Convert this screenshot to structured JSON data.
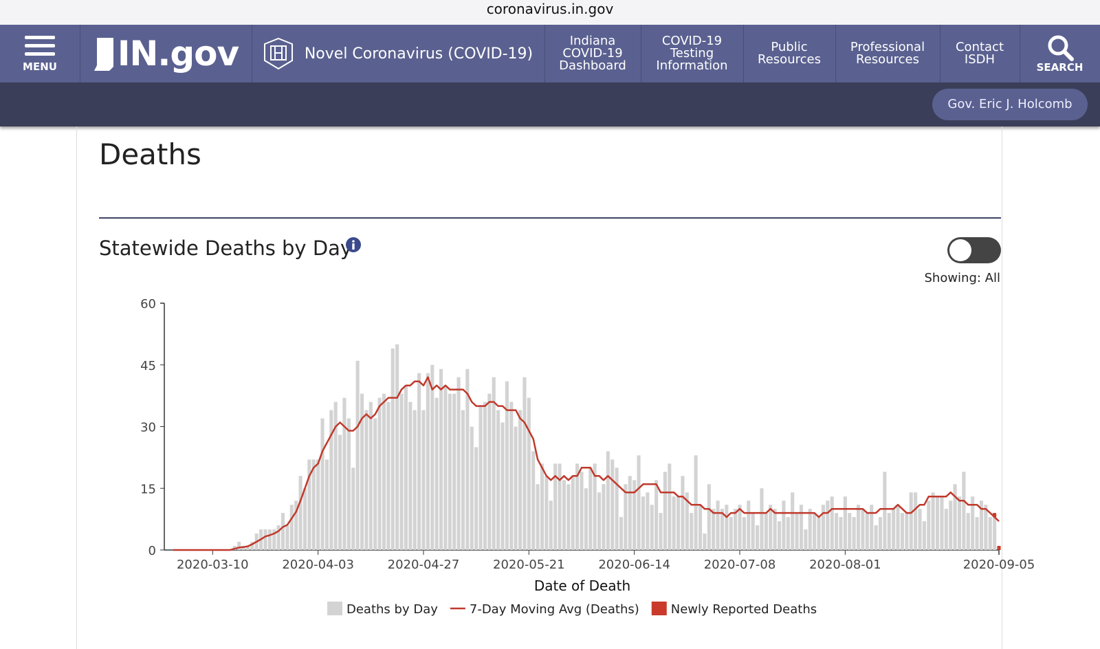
{
  "url": "coronavirus.in.gov",
  "nav": {
    "menu": "MENU",
    "logo": "IN.gov",
    "site": "Novel Coronavirus (COVID-19)",
    "links": [
      "Indiana\nCOVID-19\nDashboard",
      "COVID-19\nTesting\nInformation",
      "Public\nResources",
      "Professional\nResources",
      "Contact\nISDH"
    ],
    "search": "SEARCH"
  },
  "governor": "Gov. Eric J. Holcomb",
  "page_title": "Deaths",
  "section_title": "Statewide Deaths by Day",
  "toggle_label": "Showing: All",
  "chart_data": {
    "type": "bar",
    "xlabel": "Date of Death",
    "xlim": [
      "2020-02-28",
      "2020-09-05"
    ],
    "xticks": [
      "2020-03-10",
      "2020-04-03",
      "2020-04-27",
      "2020-05-21",
      "2020-06-14",
      "2020-07-08",
      "2020-08-01",
      "2020-09-05"
    ],
    "ylim": [
      0,
      60
    ],
    "yticks": [
      0,
      15,
      30,
      45,
      60
    ],
    "legend": "bottom",
    "x": [
      "2020-03-01",
      "2020-03-02",
      "2020-03-03",
      "2020-03-04",
      "2020-03-05",
      "2020-03-06",
      "2020-03-07",
      "2020-03-08",
      "2020-03-09",
      "2020-03-10",
      "2020-03-11",
      "2020-03-12",
      "2020-03-13",
      "2020-03-14",
      "2020-03-15",
      "2020-03-16",
      "2020-03-17",
      "2020-03-18",
      "2020-03-19",
      "2020-03-20",
      "2020-03-21",
      "2020-03-22",
      "2020-03-23",
      "2020-03-24",
      "2020-03-25",
      "2020-03-26",
      "2020-03-27",
      "2020-03-28",
      "2020-03-29",
      "2020-03-30",
      "2020-03-31",
      "2020-04-01",
      "2020-04-02",
      "2020-04-03",
      "2020-04-04",
      "2020-04-05",
      "2020-04-06",
      "2020-04-07",
      "2020-04-08",
      "2020-04-09",
      "2020-04-10",
      "2020-04-11",
      "2020-04-12",
      "2020-04-13",
      "2020-04-14",
      "2020-04-15",
      "2020-04-16",
      "2020-04-17",
      "2020-04-18",
      "2020-04-19",
      "2020-04-20",
      "2020-04-21",
      "2020-04-22",
      "2020-04-23",
      "2020-04-24",
      "2020-04-25",
      "2020-04-26",
      "2020-04-27",
      "2020-04-28",
      "2020-04-29",
      "2020-04-30",
      "2020-05-01",
      "2020-05-02",
      "2020-05-03",
      "2020-05-04",
      "2020-05-05",
      "2020-05-06",
      "2020-05-07",
      "2020-05-08",
      "2020-05-09",
      "2020-05-10",
      "2020-05-11",
      "2020-05-12",
      "2020-05-13",
      "2020-05-14",
      "2020-05-15",
      "2020-05-16",
      "2020-05-17",
      "2020-05-18",
      "2020-05-19",
      "2020-05-20",
      "2020-05-21",
      "2020-05-22",
      "2020-05-23",
      "2020-05-24",
      "2020-05-25",
      "2020-05-26",
      "2020-05-27",
      "2020-05-28",
      "2020-05-29",
      "2020-05-30",
      "2020-05-31",
      "2020-06-01",
      "2020-06-02",
      "2020-06-03",
      "2020-06-04",
      "2020-06-05",
      "2020-06-06",
      "2020-06-07",
      "2020-06-08",
      "2020-06-09",
      "2020-06-10",
      "2020-06-11",
      "2020-06-12",
      "2020-06-13",
      "2020-06-14",
      "2020-06-15",
      "2020-06-16",
      "2020-06-17",
      "2020-06-18",
      "2020-06-19",
      "2020-06-20",
      "2020-06-21",
      "2020-06-22",
      "2020-06-23",
      "2020-06-24",
      "2020-06-25",
      "2020-06-26",
      "2020-06-27",
      "2020-06-28",
      "2020-06-29",
      "2020-06-30",
      "2020-07-01",
      "2020-07-02",
      "2020-07-03",
      "2020-07-04",
      "2020-07-05",
      "2020-07-06",
      "2020-07-07",
      "2020-07-08",
      "2020-07-09",
      "2020-07-10",
      "2020-07-11",
      "2020-07-12",
      "2020-07-13",
      "2020-07-14",
      "2020-07-15",
      "2020-07-16",
      "2020-07-17",
      "2020-07-18",
      "2020-07-19",
      "2020-07-20",
      "2020-07-21",
      "2020-07-22",
      "2020-07-23",
      "2020-07-24",
      "2020-07-25",
      "2020-07-26",
      "2020-07-27",
      "2020-07-28",
      "2020-07-29",
      "2020-07-30",
      "2020-07-31",
      "2020-08-01",
      "2020-08-02",
      "2020-08-03",
      "2020-08-04",
      "2020-08-05",
      "2020-08-06",
      "2020-08-07",
      "2020-08-08",
      "2020-08-09",
      "2020-08-10",
      "2020-08-11",
      "2020-08-12",
      "2020-08-13",
      "2020-08-14",
      "2020-08-15",
      "2020-08-16",
      "2020-08-17",
      "2020-08-18",
      "2020-08-19",
      "2020-08-20",
      "2020-08-21",
      "2020-08-22",
      "2020-08-23",
      "2020-08-24",
      "2020-08-25",
      "2020-08-26",
      "2020-08-27",
      "2020-08-28",
      "2020-08-29",
      "2020-08-30",
      "2020-08-31",
      "2020-09-01",
      "2020-09-02",
      "2020-09-03",
      "2020-09-04",
      "2020-09-05"
    ],
    "series": [
      {
        "name": "Deaths by Day",
        "type": "bar",
        "color": "#d3d3d3",
        "values": [
          0,
          0,
          0,
          0,
          0,
          0,
          0,
          0,
          0,
          0,
          0,
          0,
          0,
          0,
          1,
          2,
          1,
          1,
          2,
          4,
          5,
          5,
          5,
          5,
          6,
          9,
          6,
          11,
          12,
          18,
          15,
          22,
          22,
          22,
          32,
          22,
          34,
          36,
          28,
          37,
          32,
          20,
          46,
          38,
          34,
          36,
          32,
          37,
          38,
          36,
          49,
          50,
          38,
          40,
          36,
          34,
          43,
          34,
          43,
          45,
          37,
          44,
          40,
          38,
          38,
          42,
          34,
          44,
          30,
          25,
          35,
          36,
          38,
          42,
          34,
          31,
          41,
          36,
          30,
          34,
          42,
          37,
          24,
          16,
          21,
          18,
          12,
          21,
          21,
          17,
          16,
          18,
          21,
          19,
          15,
          20,
          21,
          14,
          16,
          24,
          22,
          20,
          8,
          16,
          18,
          17,
          23,
          13,
          14,
          11,
          17,
          9,
          19,
          21,
          13,
          13,
          18,
          14,
          9,
          23,
          11,
          4,
          16,
          10,
          12,
          10,
          11,
          8,
          10,
          11,
          8,
          12,
          9,
          6,
          15,
          9,
          11,
          10,
          7,
          12,
          8,
          14,
          9,
          11,
          5,
          10,
          9,
          8,
          11,
          12,
          13,
          9,
          8,
          13,
          9,
          8,
          11,
          10,
          9,
          11,
          6,
          8,
          19,
          9,
          10,
          11,
          9,
          9,
          14,
          14,
          10,
          7,
          12,
          14,
          13,
          13,
          10,
          12,
          16,
          13,
          19,
          9,
          13,
          8,
          12,
          11,
          8,
          8,
          0
        ]
      },
      {
        "name": "7-Day Moving Avg (Deaths)",
        "type": "line",
        "color": "#c0392b",
        "values": [
          0,
          0,
          0,
          0,
          0,
          0,
          0,
          0,
          0,
          0,
          0,
          0,
          0,
          0,
          0.3,
          0.6,
          0.7,
          0.9,
          1.4,
          2,
          2.6,
          3.3,
          3.6,
          4,
          4.6,
          5.6,
          6.1,
          7.7,
          9.3,
          12,
          15,
          18,
          20,
          21,
          24,
          26,
          28,
          30,
          31,
          30,
          29,
          29,
          30,
          32,
          33,
          32,
          33,
          35,
          36,
          37,
          37,
          37,
          39,
          40,
          40,
          41,
          41,
          40,
          42,
          39,
          40,
          39,
          40,
          39,
          39,
          39,
          39,
          38,
          36,
          35,
          35,
          35,
          36,
          36,
          35,
          35,
          34,
          34,
          34,
          32,
          31,
          29,
          27,
          22,
          20,
          18,
          17,
          18,
          17,
          18,
          17,
          18,
          18,
          20,
          20,
          20,
          18,
          18,
          17,
          18,
          17,
          16,
          15,
          14,
          14,
          14,
          15,
          16,
          16,
          16,
          16,
          14,
          14,
          14,
          14,
          13,
          13,
          12,
          11,
          11,
          11,
          10,
          10,
          9,
          9,
          9,
          8,
          9,
          9,
          10,
          9,
          9,
          9,
          9,
          9,
          9,
          10,
          9,
          9,
          9,
          9,
          9,
          9,
          9,
          9,
          9,
          9,
          8,
          9,
          9,
          10,
          10,
          10,
          10,
          10,
          10,
          10,
          10,
          9,
          9,
          9,
          10,
          10,
          10,
          10,
          11,
          10,
          9,
          9,
          10,
          11,
          11,
          13,
          13,
          13,
          13,
          13,
          14,
          13,
          12,
          12,
          11,
          11,
          11,
          10,
          10,
          9,
          8,
          7
        ]
      },
      {
        "name": "Newly Reported Deaths",
        "type": "bar",
        "color": "#c93a2b",
        "x": [
          "2020-09-04",
          "2020-09-05"
        ],
        "values": [
          1,
          1
        ]
      }
    ]
  }
}
